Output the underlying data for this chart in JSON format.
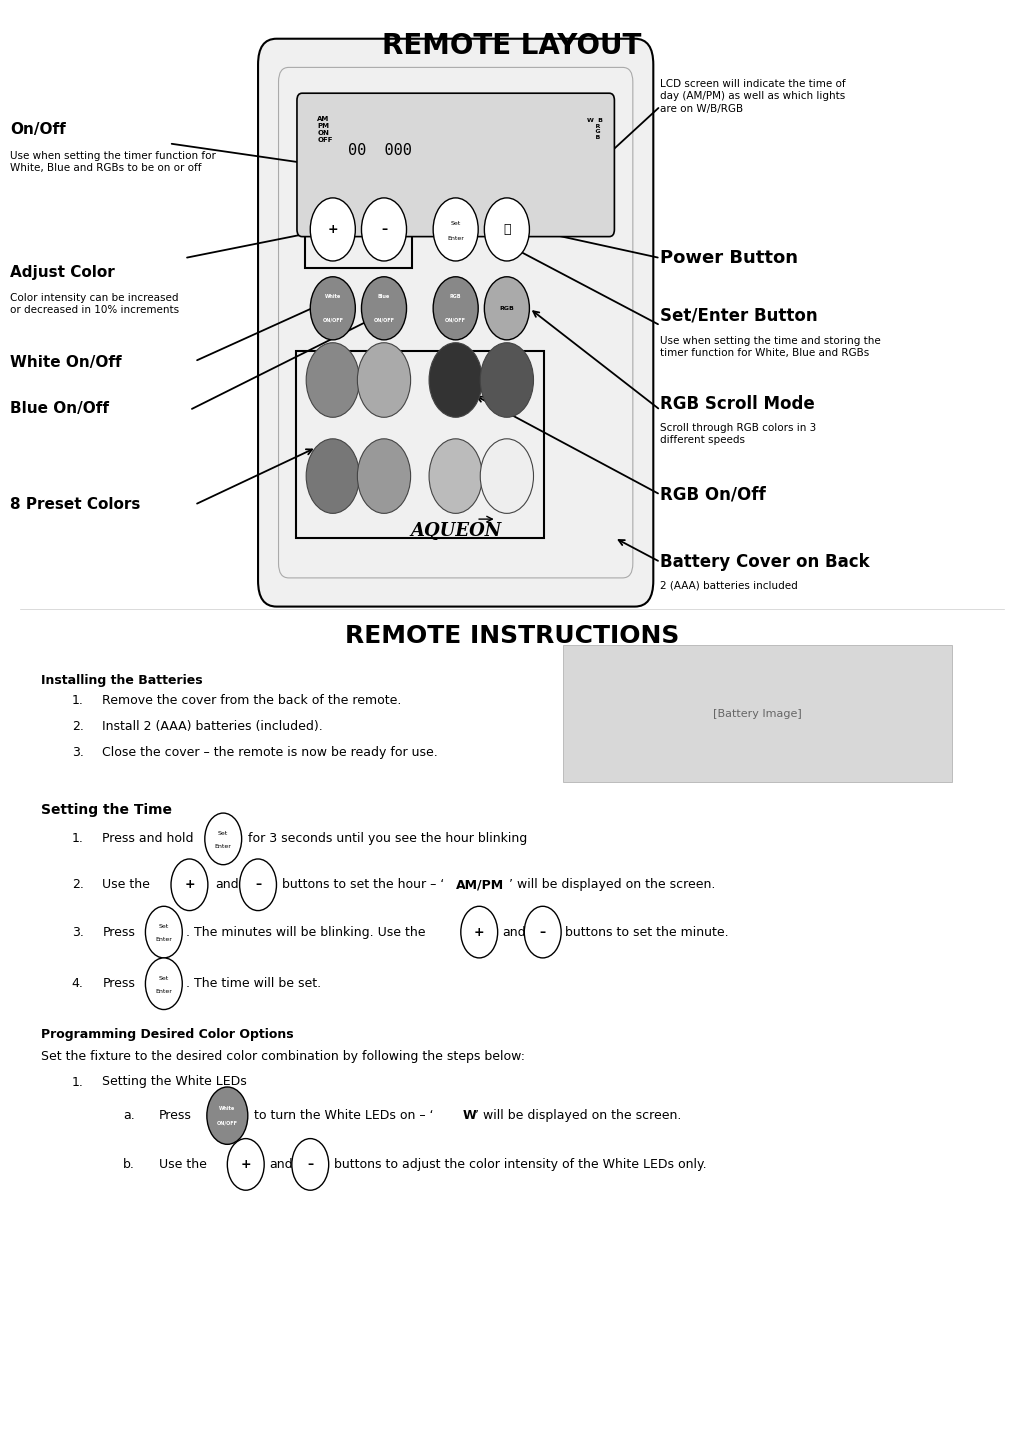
{
  "title_layout": "REMOTE LAYOUT",
  "title_instructions": "REMOTE INSTRUCTIONS",
  "bg_color": "#ffffff",
  "text_color": "#000000",
  "section_installing": "Installing the Batteries",
  "installing_steps": [
    "Remove the cover from the back of the remote.",
    "Install 2 (AAA) batteries (included).",
    "Close the cover – the remote is now be ready for use."
  ],
  "section_time": "Setting the Time",
  "section_color": "Programming Desired Color Options",
  "color_intro": "Set the fixture to the desired color combination by following the steps below:",
  "color_steps": [
    "Setting the White LEDs"
  ],
  "preset_colors_row1": [
    "#888888",
    "#aaaaaa",
    "#333333",
    "#555555"
  ],
  "preset_colors_row2": [
    "#777777",
    "#999999",
    "#bbbbbb",
    "#eeeeee"
  ]
}
